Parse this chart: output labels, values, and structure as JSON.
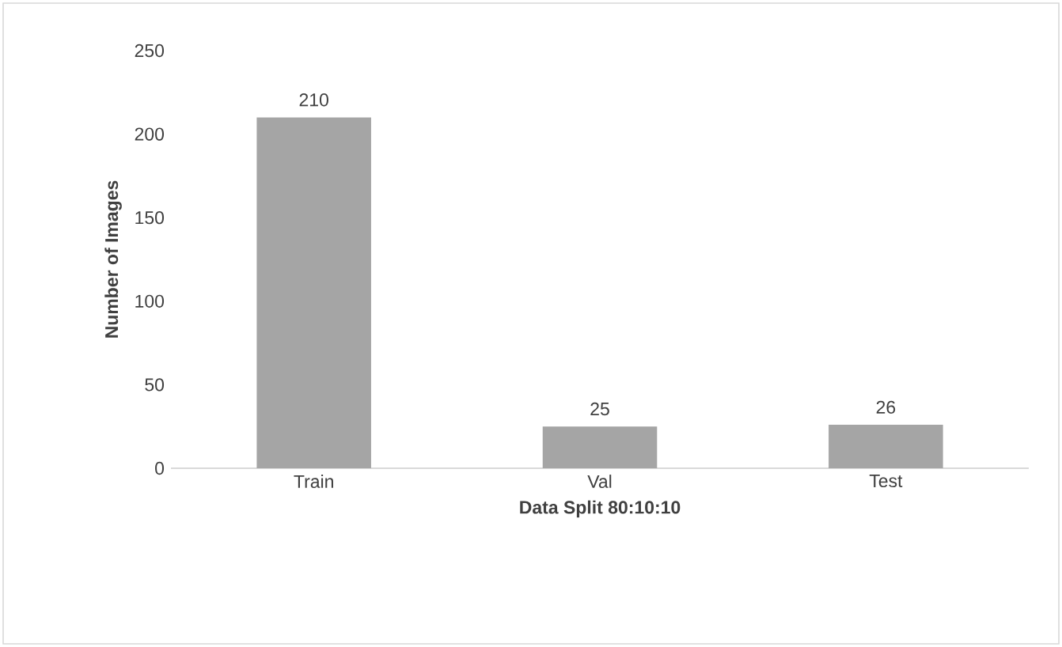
{
  "chart_data": {
    "type": "bar",
    "xlabel": "Data Split 80:10:10",
    "ylabel": "Number of Images",
    "categories": [
      "Train",
      "Val",
      "Test"
    ],
    "values": [
      210,
      25,
      26
    ],
    "color": "#a5a5a5",
    "ylim": [
      0,
      250
    ],
    "yticks": [
      0,
      50,
      100,
      150,
      200,
      250
    ],
    "data_labels": true
  }
}
